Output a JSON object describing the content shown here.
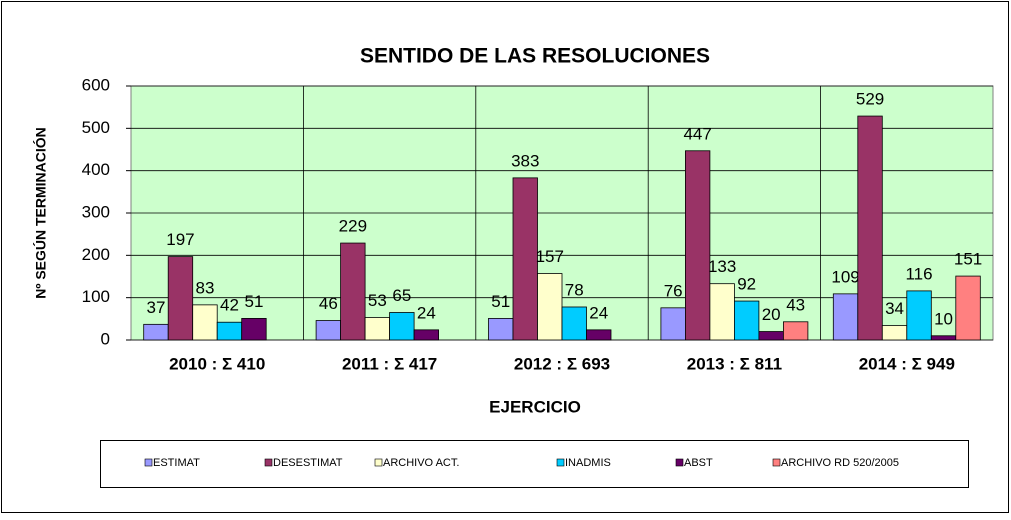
{
  "chart_data": {
    "type": "bar",
    "title": "SENTIDO DE LAS RESOLUCIONES",
    "x_label": "EJERCICIO",
    "y_label": "Nº SEGÚN TERMINACIÓN",
    "categories": [
      "2010 : Σ 410",
      "2011 : Σ 417",
      "2012 : Σ 693",
      "2013 : Σ 811",
      "2014 : Σ 949"
    ],
    "series": [
      {
        "name": "ESTIMAT",
        "color": "#9999ff",
        "values": [
          37,
          46,
          51,
          76,
          109
        ]
      },
      {
        "name": "DESESTIMAT",
        "color": "#993366",
        "values": [
          197,
          229,
          383,
          447,
          529
        ]
      },
      {
        "name": "ARCHIVO ACT.",
        "color": "#ffffcc",
        "values": [
          83,
          53,
          157,
          133,
          34
        ]
      },
      {
        "name": "INADMIS",
        "color": "#00ccff",
        "values": [
          42,
          65,
          78,
          92,
          116
        ]
      },
      {
        "name": "ABST",
        "color": "#660066",
        "values": [
          51,
          24,
          24,
          20,
          10
        ]
      },
      {
        "name": "ARCHIVO RD 520/2005",
        "color": "#ff8080",
        "values": [
          null,
          null,
          null,
          43,
          151
        ]
      }
    ],
    "ylim": [
      0,
      600
    ],
    "yticks": [
      0,
      100,
      200,
      300,
      400,
      500,
      600
    ],
    "grid": true,
    "plot_background": "#ccffcc",
    "legend": "bottom"
  }
}
